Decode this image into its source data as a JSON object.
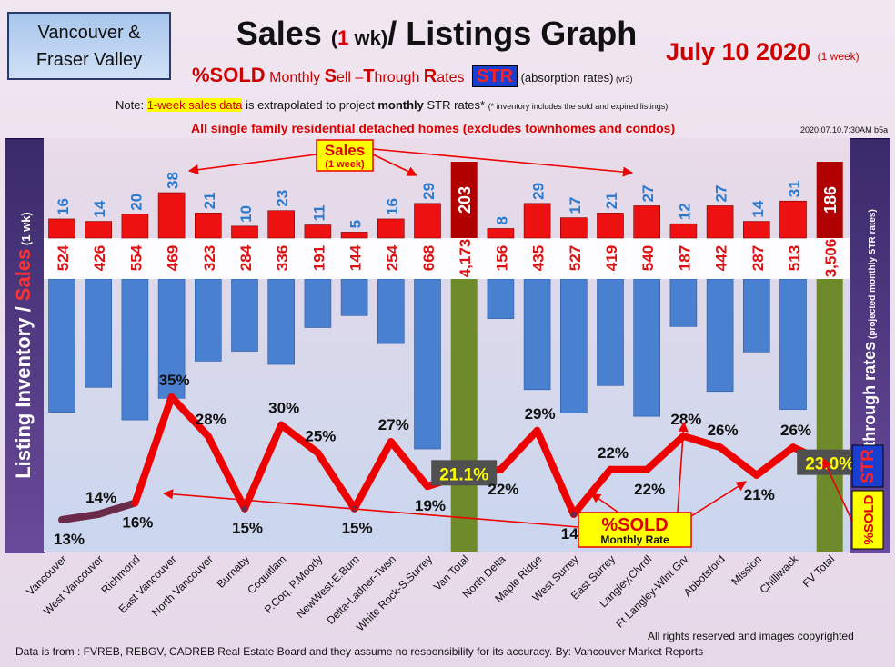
{
  "header": {
    "region_line1": "Vancouver &",
    "region_line2": "Fraser Valley",
    "title_part1": "Sales ",
    "title_paren_open": "(",
    "title_one": "1",
    "title_wk": " wk)",
    "title_part2": "/ Listings Graph",
    "date": "July 10  2020",
    "date_suffix": "(1 week)",
    "subtitle_pct": "%SOLD",
    "subtitle_monthly": " Monthly ",
    "subtitle_s": "S",
    "subtitle_ell": "ell –",
    "subtitle_t": "T",
    "subtitle_hrough": "hrough ",
    "subtitle_r": "R",
    "subtitle_ates": "ates",
    "subtitle_badge": "STR",
    "subtitle_absorption": " (absorption rates)",
    "subtitle_vr": " (vr3)",
    "note_prefix": "Note: ",
    "note_highlight": "1-week sales data",
    "note_middle": " is extrapolated to project ",
    "note_bold": "monthly",
    "note_suffix": " STR rates* ",
    "note_small": "(* inventory includes the sold and expired listings).",
    "scope": "All single family residential detached homes (excludes townhomes and condos)",
    "stamp": "2020.07.10.7:30AM b5a"
  },
  "footer": {
    "rights": "All rights reserved and  images copyrighted",
    "source": "Data is from : FVREB, REBGV, CADREB Real Estate Board and they assume no responsibility for its accuracy. By: Vancouver Market Reports"
  },
  "colors": {
    "sales_bar": "#ee1111",
    "total_bar": "#b00000",
    "listing_bar": "#4a80d0",
    "total_listing_bar": "#6e8a2a",
    "str_line": "#ee0000",
    "str_line_low": "#6a2a4a"
  },
  "chart_data": {
    "type": "bar",
    "categories": [
      "Vancouver",
      "West Vancouver",
      "Richmond",
      "East Vancouver",
      "North Vancouver",
      "Burnaby",
      "Coquitlam",
      "P.Coq, P.Moody",
      "NewWest-E.Burn",
      "Delta-Ladner-Twsn",
      "White Rock-S.Surrey",
      "Van Total",
      "North Delta",
      "Maple Ridge",
      "West Surrey",
      "East Surrey",
      "Langley,Clvrdl",
      "Ft Langley-Wlnt Grv",
      "Abbotsford",
      "Mission",
      "Chilliwack",
      "FV Total"
    ],
    "series": [
      {
        "name": "Sales (1 week)",
        "values": [
          16,
          14,
          20,
          38,
          21,
          10,
          23,
          11,
          5,
          16,
          29,
          203,
          8,
          29,
          17,
          21,
          27,
          12,
          27,
          14,
          31,
          186
        ]
      },
      {
        "name": "Listing Inventory",
        "values": [
          524,
          426,
          554,
          469,
          323,
          284,
          336,
          191,
          144,
          254,
          668,
          4173,
          156,
          435,
          527,
          419,
          540,
          187,
          442,
          287,
          513,
          3506
        ]
      },
      {
        "name": "%SOLD Monthly Rate",
        "values": [
          13,
          14,
          16,
          35,
          28,
          15,
          30,
          25,
          15,
          27,
          19,
          21.1,
          22,
          29,
          14,
          22,
          22,
          28,
          26,
          21,
          26,
          23.0
        ]
      }
    ],
    "sales_labels": [
      "16",
      "14",
      "20",
      "38",
      "21",
      "10",
      "23",
      "11",
      "5",
      "16",
      "29",
      "203",
      "8",
      "29",
      "17",
      "21",
      "27",
      "12",
      "27",
      "14",
      "31",
      "186"
    ],
    "listing_labels": [
      "524",
      "426",
      "554",
      "469",
      "323",
      "284",
      "336",
      "191",
      "144",
      "254",
      "668",
      "4,173",
      "156",
      "435",
      "527",
      "419",
      "540",
      "187",
      "442",
      "287",
      "513",
      "3,506"
    ],
    "str_labels": [
      "13%",
      "14%",
      "16%",
      "35%",
      "28%",
      "15%",
      "30%",
      "25%",
      "15%",
      "27%",
      "19%",
      "21.1%",
      "22%",
      "29%",
      "14%",
      "22%",
      "22%",
      "28%",
      "26%",
      "21%",
      "26%",
      "23.0%"
    ],
    "ylabel_left_part1": "Listing Inventory ",
    "ylabel_left_slash": "/ ",
    "ylabel_left_sales": "Sales",
    "ylabel_left_suffix": " (1 wk)",
    "ylabel_right_pct": "%SOLD",
    "ylabel_right_badge": "STR",
    "ylabel_right_main": "Sell-through rates",
    "ylabel_right_suffix": " (projected monthly STR rates)",
    "callout_sales": "Sales",
    "callout_sales_sub": "(1 week)",
    "callout_sold": "%SOLD",
    "callout_sold_sub": "Monthly Rate",
    "grid": false
  }
}
